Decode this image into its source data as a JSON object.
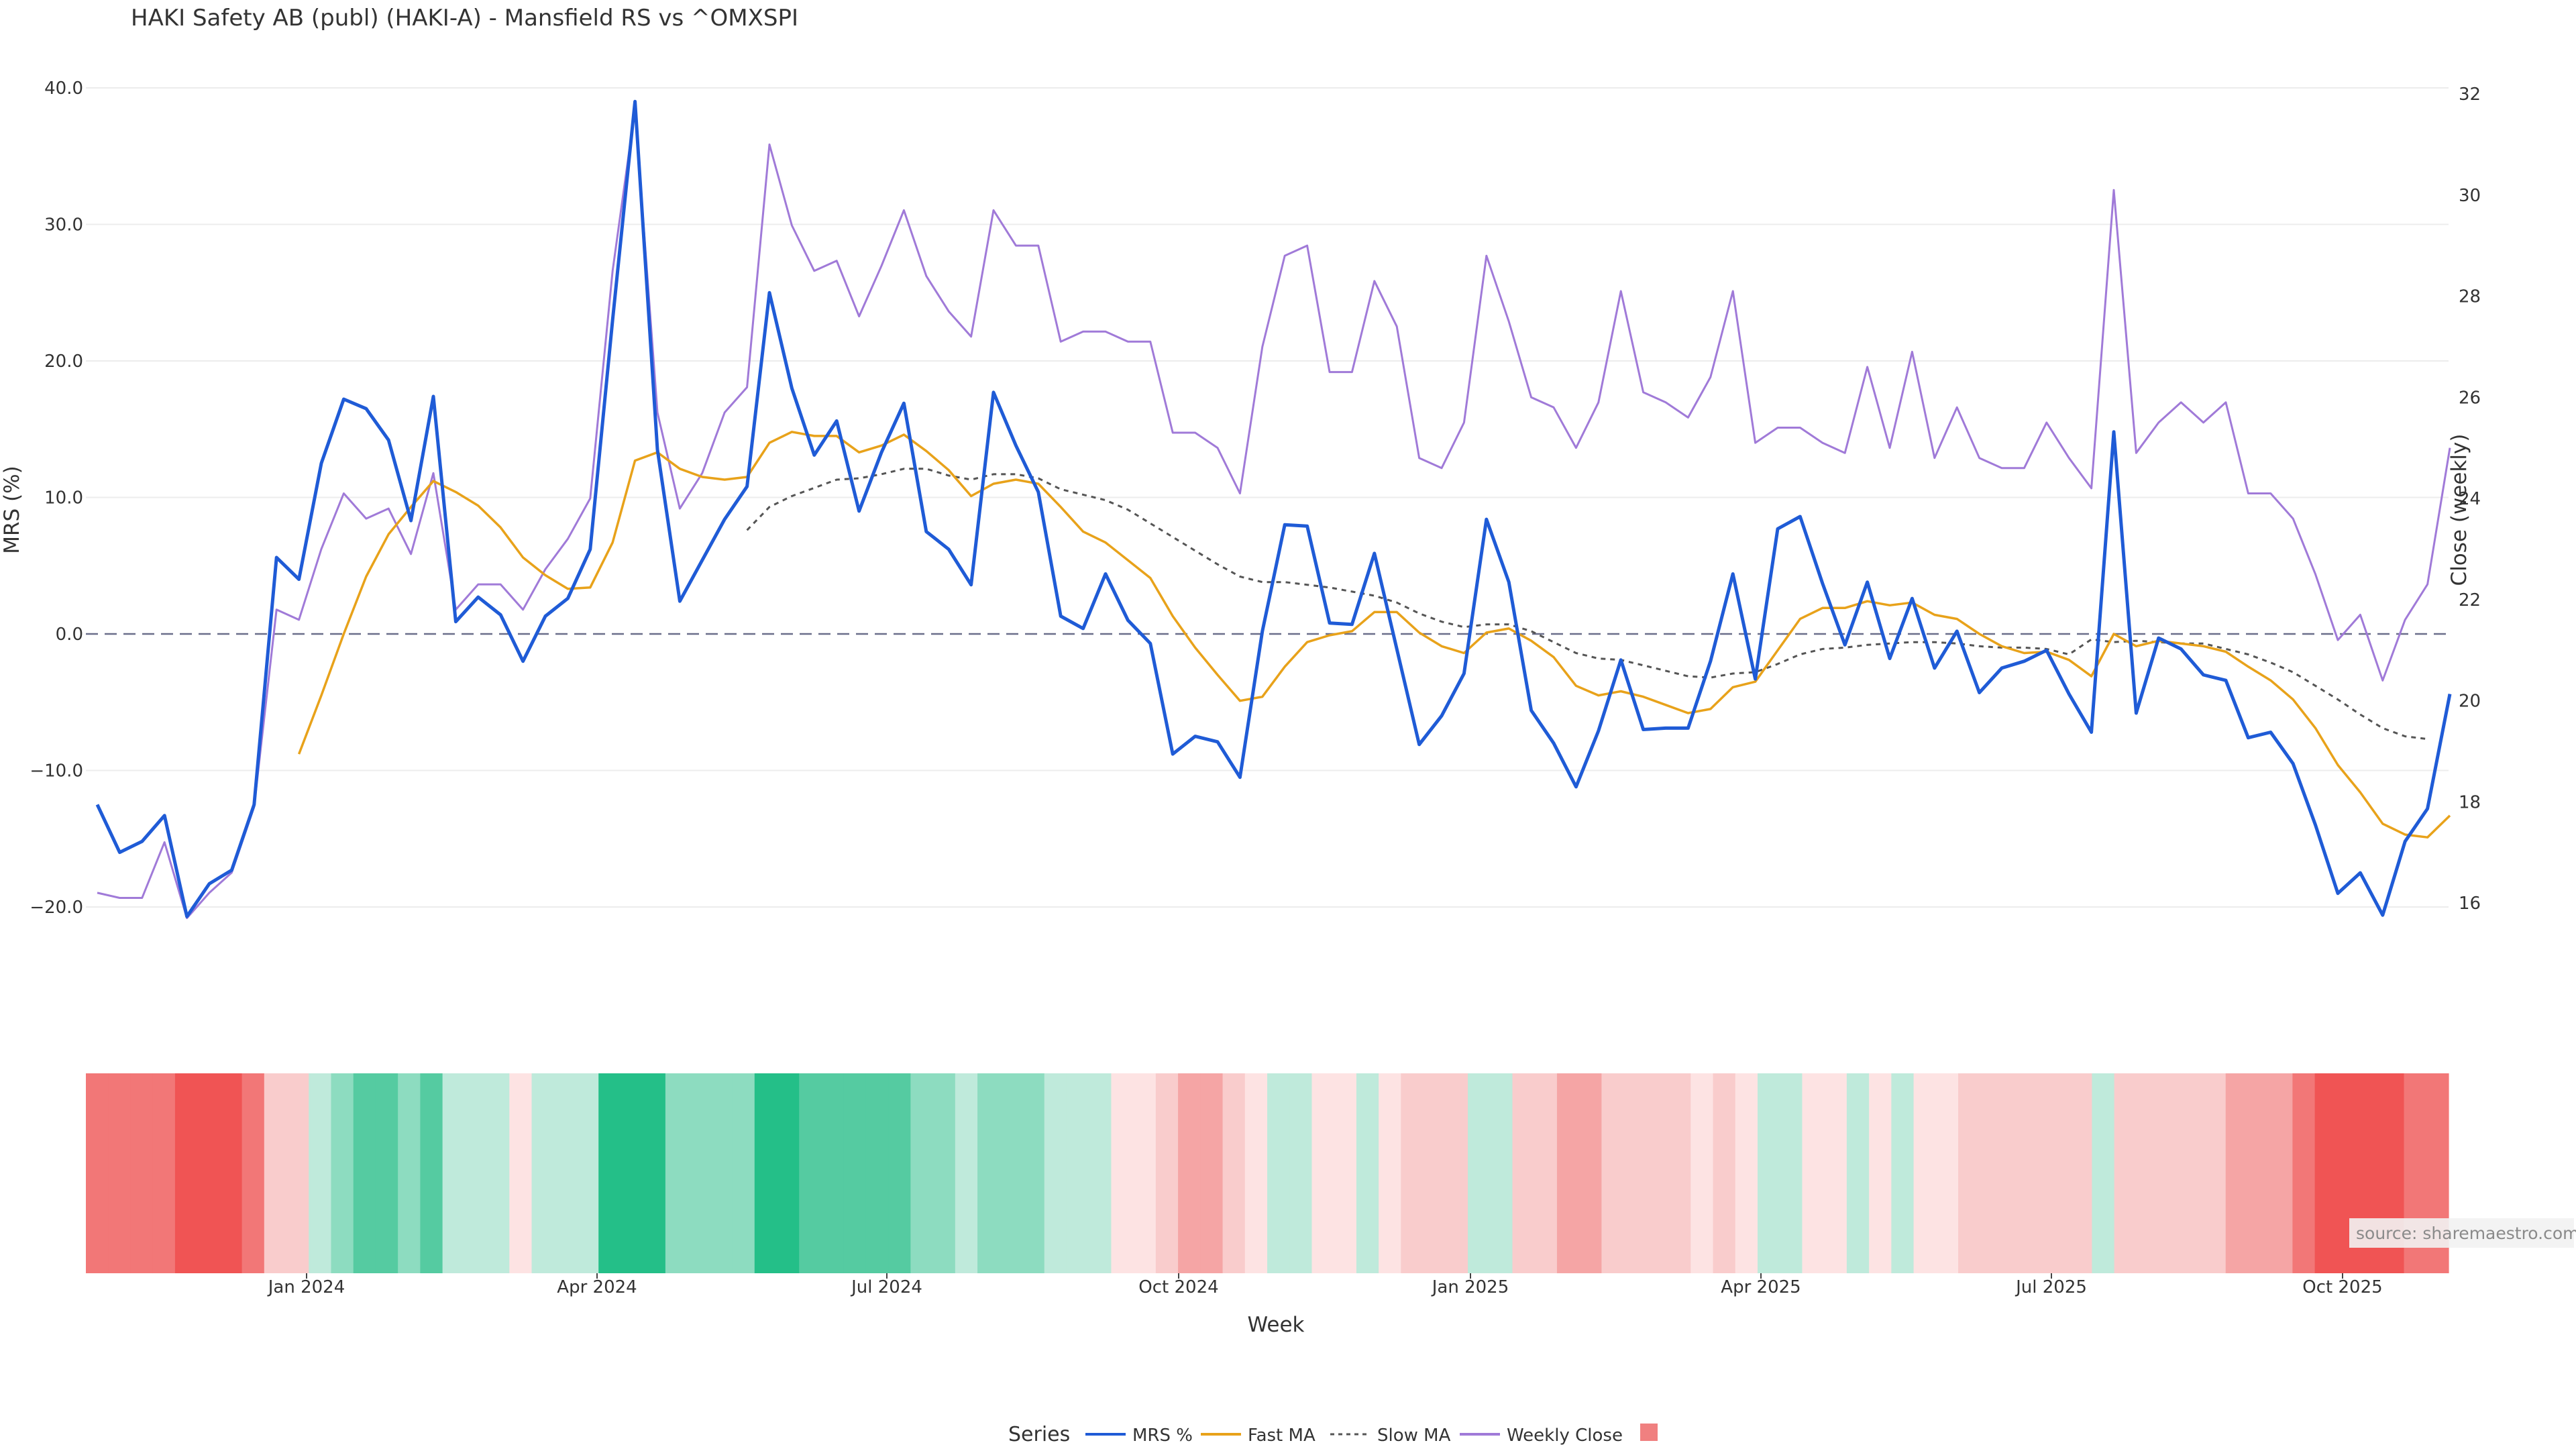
{
  "chart_data": {
    "type": "line",
    "title": "HAKI Safety AB (publ) (HAKI-A) - Mansfield RS vs ^OMXSPI",
    "xlabel": "Week",
    "ylabel_left": "MRS (%)",
    "ylabel_right": "Close (weekly)",
    "x_ticks": [
      "Jan 2024",
      "Apr 2024",
      "Jul 2024",
      "Oct 2024",
      "Jan 2025",
      "Apr 2025",
      "Jul 2025",
      "Oct 2025"
    ],
    "y_left_ticks": [
      "40.0",
      "30.0",
      "20.0",
      "10.0",
      "0.0",
      "−10.0",
      "−20.0"
    ],
    "y_right_ticks": [
      "32",
      "30",
      "28",
      "26",
      "24",
      "22",
      "20",
      "18",
      "16"
    ],
    "ylim_left": [
      -21,
      40
    ],
    "ylim_right": [
      15,
      32
    ],
    "grid": true,
    "reference_line": 0,
    "source": "source: sharemaestro.com",
    "legend": {
      "title": "Series",
      "placement": "bottom-center",
      "items": [
        {
          "label": "MRS %",
          "style": "solid",
          "color": "#1f5bd6"
        },
        {
          "label": "Fast MA",
          "style": "solid",
          "color": "#e8a21a"
        },
        {
          "label": "Slow MA",
          "style": "dotted",
          "color": "#555555"
        },
        {
          "label": "Weekly Close",
          "style": "solid",
          "color": "#a07ad8"
        },
        {
          "label": "",
          "style": "swatch",
          "color": "#f08080"
        }
      ]
    },
    "start_week": "2023-10-16",
    "series": [
      {
        "name": "MRS %",
        "axis": "left",
        "color": "#1f5bd6",
        "start_index": 0,
        "values": [
          -12.5,
          -16.0,
          -15.2,
          -13.3,
          -20.7,
          -18.3,
          -17.3,
          -12.5,
          5.6,
          4.0,
          12.5,
          17.2,
          16.5,
          14.2,
          8.3,
          17.4,
          0.9,
          2.7,
          1.4,
          -2.0,
          1.3,
          2.6,
          6.2,
          23.0,
          39.0,
          13.5,
          2.4,
          5.4,
          8.4,
          10.8,
          25.0,
          18.0,
          13.1,
          15.6,
          9.0,
          13.3,
          16.9,
          7.5,
          6.2,
          3.6,
          17.7,
          13.8,
          10.4,
          1.3,
          0.4,
          4.4,
          1.0,
          -0.7,
          -8.8,
          -7.5,
          -7.9,
          -10.5,
          0.2,
          8.0,
          7.9,
          0.8,
          0.7,
          5.9,
          -1.1,
          -8.1,
          -6.0,
          -2.9,
          8.4,
          3.8,
          -5.6,
          -8.0,
          -11.2,
          -7.1,
          -1.9,
          -7.0,
          -6.9,
          -6.9,
          -2.0,
          4.4,
          -3.3,
          7.7,
          8.6,
          3.7,
          -0.8,
          3.8,
          -1.8,
          2.6,
          -2.5,
          0.2,
          -4.3,
          -2.5,
          -2.0,
          -1.2,
          -4.4,
          -7.2,
          14.8,
          -5.8,
          -0.3,
          -1.1,
          -3.0,
          -3.4,
          -7.6,
          -7.2,
          -9.5,
          -14.0,
          -19.0,
          -17.5,
          -20.6,
          -15.2,
          -12.8,
          -4.4
        ]
      },
      {
        "name": "Fast MA",
        "axis": "left",
        "color": "#e8a21a",
        "start_index": 9,
        "values": [
          -8.8,
          -4.5,
          0,
          4.2,
          7.3,
          9.3,
          11.2,
          10.4,
          9.4,
          7.8,
          5.6,
          4.3,
          3.3,
          3.4,
          6.7,
          12.7,
          13.3,
          12.1,
          11.5,
          11.3,
          11.5,
          14.0,
          14.8,
          14.5,
          14.5,
          13.3,
          13.8,
          14.6,
          13.4,
          12.0,
          10.1,
          11.0,
          11.3,
          11.0,
          9.3,
          7.5,
          6.7,
          5.4,
          4.1,
          1.3,
          -1.0,
          -3.0,
          -4.9,
          -4.6,
          -2.4,
          -0.6,
          -0.1,
          0.2,
          1.6,
          1.6,
          0.1,
          -0.9,
          -1.4,
          0.1,
          0.4,
          -0.5,
          -1.7,
          -3.8,
          -4.5,
          -4.2,
          -4.6,
          -5.2,
          -5.8,
          -5.5,
          -3.9,
          -3.5,
          -1.2,
          1.1,
          1.9,
          1.9,
          2.4,
          2.1,
          2.3,
          1.4,
          1.1,
          0,
          -0.9,
          -1.4,
          -1.3,
          -1.9,
          -3.1,
          0,
          -0.9,
          -0.5,
          -0.7,
          -0.9,
          -1.3,
          -2.4,
          -3.4,
          -4.8,
          -6.9,
          -9.6,
          -11.6,
          -13.9,
          -14.7,
          -14.9,
          -13.3
        ]
      },
      {
        "name": "Slow MA",
        "axis": "left",
        "color": "#555555",
        "start_index": 29,
        "values": [
          7.6,
          9.3,
          10.1,
          10.7,
          11.3,
          11.4,
          11.7,
          12.1,
          12.1,
          11.6,
          11.3,
          11.7,
          11.7,
          11.4,
          10.6,
          10.2,
          9.8,
          9.1,
          8.1,
          7.1,
          6.1,
          5.1,
          4.2,
          3.8,
          3.8,
          3.6,
          3.4,
          3.1,
          2.8,
          2.3,
          1.5,
          0.9,
          0.5,
          0.7,
          0.7,
          0.2,
          -0.6,
          -1.4,
          -1.8,
          -1.9,
          -2.3,
          -2.7,
          -3.1,
          -3.2,
          -2.9,
          -2.8,
          -2.2,
          -1.5,
          -1.1,
          -1.0,
          -0.8,
          -0.7,
          -0.6,
          -0.6,
          -0.7,
          -0.9,
          -1.0,
          -1.0,
          -1.1,
          -1.5,
          -0.4,
          -0.6,
          -0.5,
          -0.6,
          -0.7,
          -0.7,
          -1.1,
          -1.5,
          -2.1,
          -2.8,
          -3.8,
          -4.8,
          -5.9,
          -6.9,
          -7.5,
          -7.7
        ]
      },
      {
        "name": "Weekly Close",
        "axis": "right",
        "color": "#a07ad8",
        "start_index": 0,
        "values": [
          16.2,
          16.1,
          16.1,
          17.2,
          15.7,
          16.2,
          16.6,
          17.9,
          21.8,
          21.6,
          23.0,
          24.1,
          23.6,
          23.8,
          22.9,
          24.5,
          21.8,
          22.3,
          22.3,
          21.8,
          22.6,
          23.2,
          24.0,
          28.5,
          31.7,
          25.7,
          23.8,
          24.5,
          25.7,
          26.2,
          31.0,
          29.4,
          28.5,
          28.7,
          27.6,
          28.6,
          29.7,
          28.4,
          27.7,
          27.2,
          29.7,
          29.0,
          29.0,
          27.1,
          27.3,
          27.3,
          27.1,
          27.1,
          25.3,
          25.3,
          25.0,
          24.1,
          27.0,
          28.8,
          29.0,
          26.5,
          26.5,
          28.3,
          27.4,
          24.8,
          24.6,
          25.5,
          28.8,
          27.5,
          26.0,
          25.8,
          25.0,
          25.9,
          28.1,
          26.1,
          25.9,
          25.6,
          26.4,
          28.1,
          25.1,
          25.4,
          25.4,
          25.1,
          24.9,
          26.6,
          25.0,
          26.9,
          24.8,
          25.8,
          24.8,
          24.6,
          24.6,
          25.5,
          24.8,
          24.2,
          30.1,
          24.9,
          25.5,
          25.9,
          25.5,
          25.9,
          24.1,
          24.1,
          23.6,
          22.5,
          21.2,
          21.7,
          20.4,
          21.6,
          22.3,
          25.0
        ]
      }
    ],
    "heatmap": {
      "description_of_scale": "weekly MRS momentum, red = negative, green = positive",
      "values": [
        -3,
        -3,
        -3,
        -3,
        -4,
        -4,
        -4,
        -3,
        -1,
        -1,
        1,
        2,
        3,
        3,
        2,
        3,
        1,
        1,
        1,
        0,
        1,
        1,
        1,
        4,
        4,
        4,
        2,
        2,
        2,
        2,
        4,
        4,
        3,
        3,
        3,
        3,
        3,
        2,
        2,
        1,
        2,
        2,
        2,
        1,
        1,
        1,
        0,
        0,
        -1,
        -2,
        -2,
        -1,
        0,
        1,
        1,
        0,
        0,
        1,
        0,
        -1,
        -1,
        -1,
        1,
        1,
        -1,
        -1,
        -2,
        -2,
        -1,
        -1,
        -1,
        -1,
        0,
        -1,
        0,
        1,
        1,
        0,
        0,
        1,
        0,
        1,
        0,
        0,
        -1,
        -1,
        -1,
        -1,
        -1,
        -1,
        1,
        -1,
        -1,
        -1,
        -1,
        -1,
        -2,
        -2,
        -2,
        -3,
        -4,
        -4,
        -4,
        -4,
        -3,
        -3
      ]
    }
  }
}
